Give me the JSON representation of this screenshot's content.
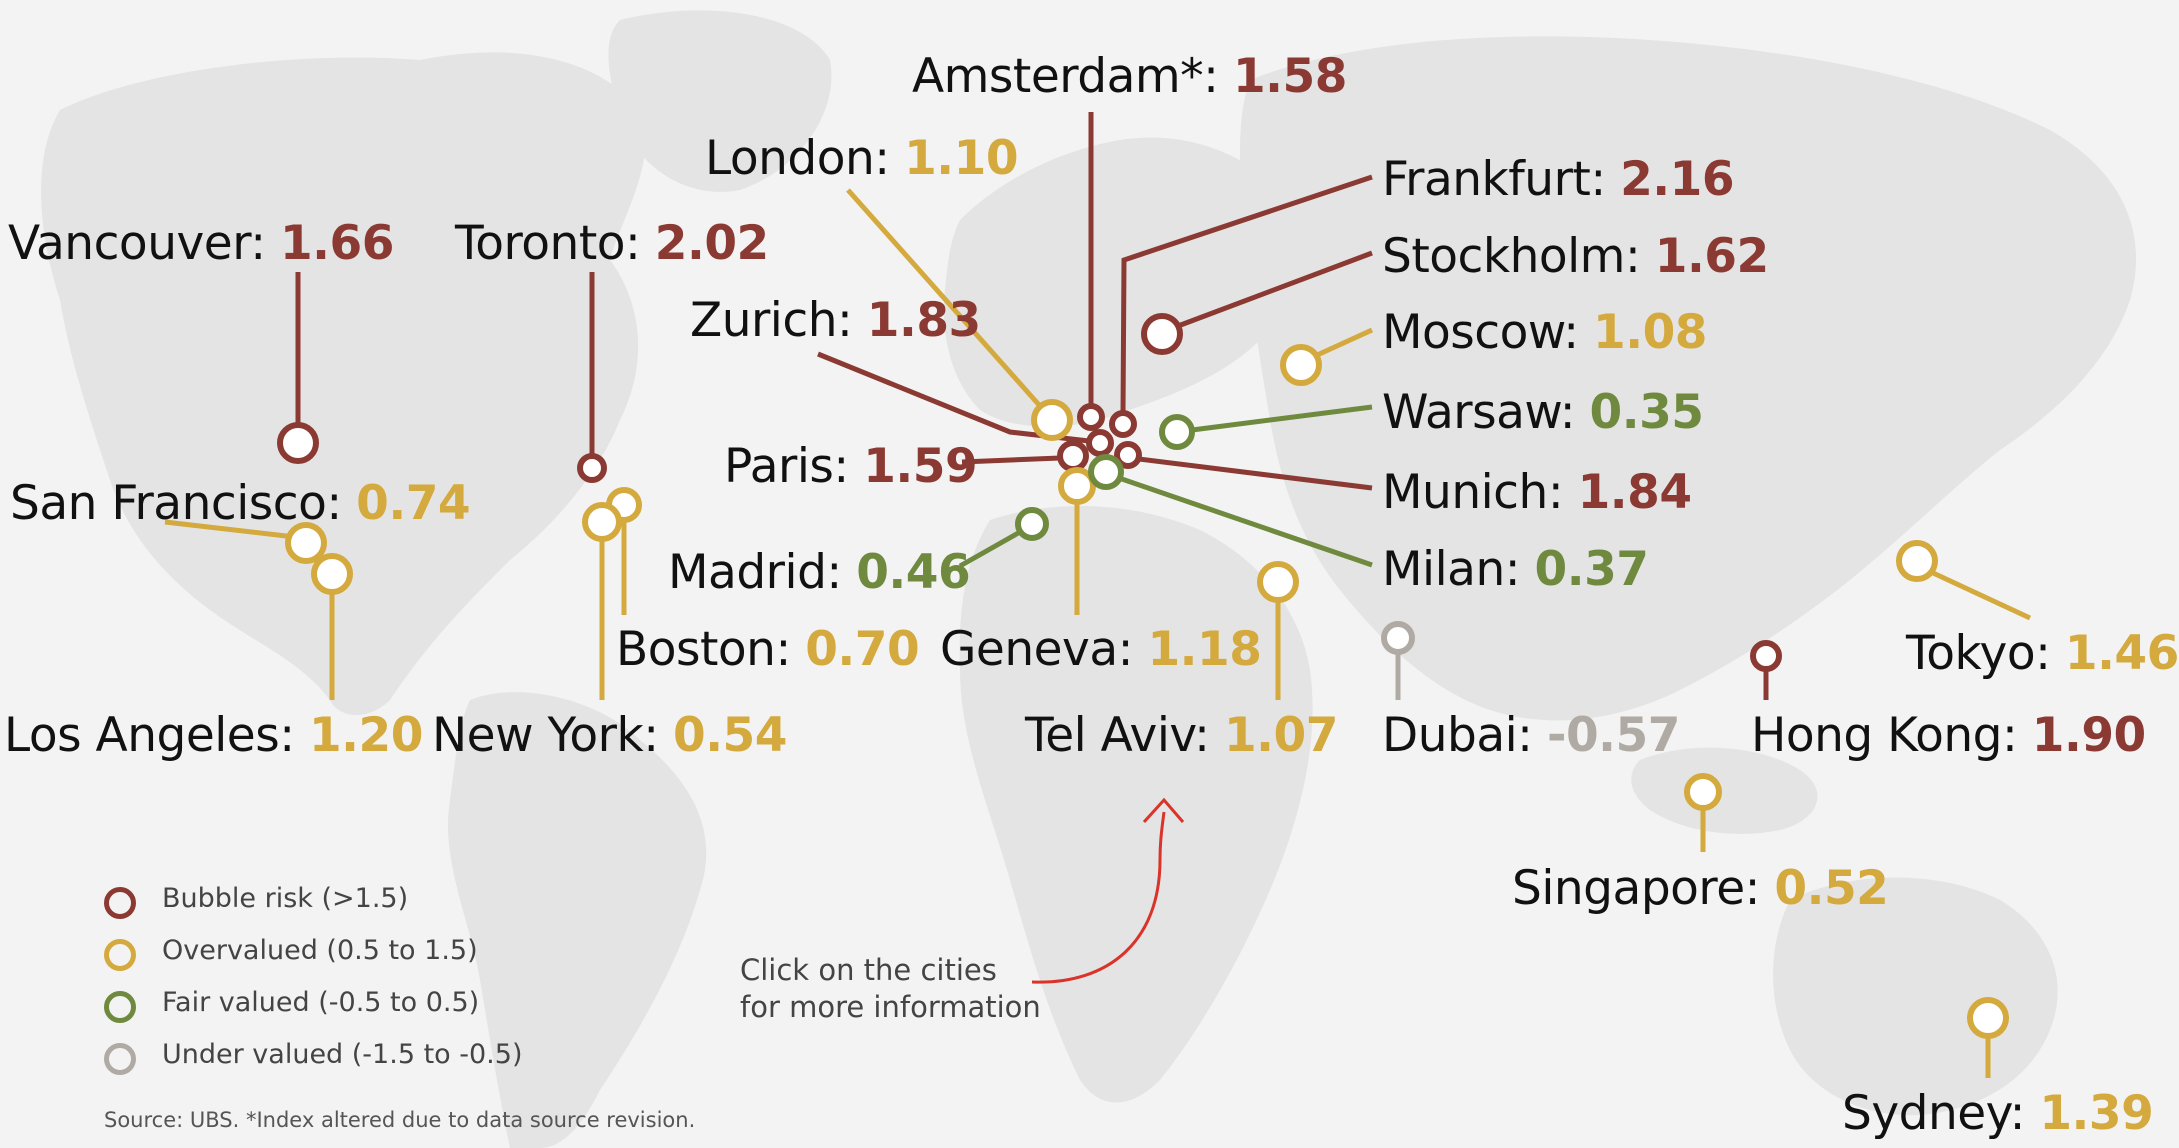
{
  "colors": {
    "bubble": "#8b3a33",
    "over": "#d4a93d",
    "fair": "#6f8a3e",
    "under": "#b0aaa4"
  },
  "cities": [
    {
      "name": "Vancouver",
      "value": "1.66",
      "cat": "bubble"
    },
    {
      "name": "Toronto",
      "value": "2.02",
      "cat": "bubble"
    },
    {
      "name": "San Francisco",
      "value": "0.74",
      "cat": "over"
    },
    {
      "name": "Los Angeles",
      "value": "1.20",
      "cat": "over"
    },
    {
      "name": "Boston",
      "value": "0.70",
      "cat": "over"
    },
    {
      "name": "New York",
      "value": "0.54",
      "cat": "over"
    },
    {
      "name": "Amsterdam*",
      "value": "1.58",
      "cat": "bubble"
    },
    {
      "name": "London",
      "value": "1.10",
      "cat": "over"
    },
    {
      "name": "Zurich",
      "value": "1.83",
      "cat": "bubble"
    },
    {
      "name": "Paris",
      "value": "1.59",
      "cat": "bubble"
    },
    {
      "name": "Madrid",
      "value": "0.46",
      "cat": "fair"
    },
    {
      "name": "Geneva",
      "value": "1.18",
      "cat": "over"
    },
    {
      "name": "Tel Aviv",
      "value": "1.07",
      "cat": "over"
    },
    {
      "name": "Frankfurt",
      "value": "2.16",
      "cat": "bubble"
    },
    {
      "name": "Stockholm",
      "value": "1.62",
      "cat": "bubble"
    },
    {
      "name": "Moscow",
      "value": "1.08",
      "cat": "over"
    },
    {
      "name": "Warsaw",
      "value": "0.35",
      "cat": "fair"
    },
    {
      "name": "Munich",
      "value": "1.84",
      "cat": "bubble"
    },
    {
      "name": "Milan",
      "value": "0.37",
      "cat": "fair"
    },
    {
      "name": "Dubai",
      "value": "-0.57",
      "cat": "under"
    },
    {
      "name": "Tokyo",
      "value": "1.46",
      "cat": "over"
    },
    {
      "name": "Hong Kong",
      "value": "1.90",
      "cat": "bubble"
    },
    {
      "name": "Singapore",
      "value": "0.52",
      "cat": "over"
    },
    {
      "name": "Sydney",
      "value": "1.39",
      "cat": "over"
    }
  ],
  "legend": [
    {
      "label": "Bubble risk (>1.5)",
      "cat": "bubble"
    },
    {
      "label": "Overvalued (0.5 to 1.5)",
      "cat": "over"
    },
    {
      "label": "Fair valued (-0.5 to 0.5)",
      "cat": "fair"
    },
    {
      "label": "Under valued (-1.5 to -0.5)",
      "cat": "under"
    }
  ],
  "note": {
    "line1": "Click on the cities",
    "line2": "for more information",
    "arrow_color": "#d9332a"
  },
  "source": "Source: UBS. *Index altered due to data source revision."
}
